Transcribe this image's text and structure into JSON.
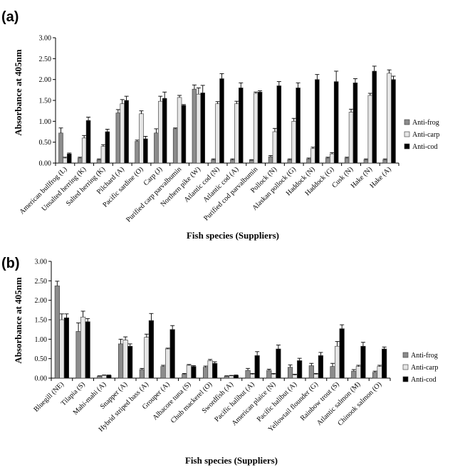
{
  "colors": {
    "frog": "#8c8c8c",
    "carp": "#e6e6e6",
    "cod": "#000000"
  },
  "chart_data": [
    {
      "type": "bar",
      "panel_label": "(a)",
      "xlabel": "Fish species (Suppliers)",
      "ylabel": "Absorbance at 405nm",
      "ylim": [
        0,
        3.0
      ],
      "yticks": [
        "0.00",
        "0.50",
        "1.00",
        "1.50",
        "2.00",
        "2.50",
        "3.00"
      ],
      "legend": "right",
      "categories": [
        "American bullfrog (L)",
        "Unsalted herring (K)",
        "Salted herring (K)",
        "Pilchard (A)",
        "Pacific sardine (O)",
        "Carp (J)",
        "Purified carp parvalbumin",
        "Northern pike (W)",
        "Atlantic cod (N)",
        "Atlantic cod (A)",
        "Purified cod parvalbumin",
        "Pollock (N)",
        "Alaskan pollock (G)",
        "Haddock (N)",
        "Haddock (G)",
        "Cusk (N)",
        "Hake (N)",
        "Hake (A)"
      ],
      "series": [
        {
          "name": "Anti-frog",
          "values": [
            0.72,
            0.12,
            0.08,
            1.2,
            0.52,
            0.72,
            0.82,
            1.77,
            0.08,
            0.08,
            0.07,
            0.15,
            0.08,
            0.1,
            0.12,
            0.12,
            0.08,
            0.08
          ],
          "errors": [
            0.12,
            0.02,
            0.02,
            0.08,
            0.03,
            0.1,
            0.02,
            0.1,
            0.02,
            0.02,
            0.01,
            0.03,
            0.02,
            0.02,
            0.02,
            0.02,
            0.02,
            0.02
          ]
        },
        {
          "name": "Anti-carp",
          "values": [
            0.12,
            0.6,
            0.4,
            1.42,
            1.18,
            1.48,
            1.57,
            1.65,
            1.42,
            1.42,
            1.67,
            0.75,
            1.0,
            0.35,
            0.22,
            1.22,
            1.62,
            2.15
          ],
          "errors": [
            0.02,
            0.06,
            0.04,
            0.1,
            0.07,
            0.12,
            0.05,
            0.15,
            0.05,
            0.06,
            0.03,
            0.08,
            0.07,
            0.03,
            0.03,
            0.07,
            0.05,
            0.08
          ]
        },
        {
          "name": "Anti-cod",
          "values": [
            0.22,
            1.02,
            0.75,
            1.5,
            0.58,
            1.55,
            1.38,
            1.68,
            2.02,
            1.8,
            1.7,
            1.85,
            1.8,
            2.0,
            1.95,
            1.92,
            2.2,
            2.0
          ],
          "errors": [
            0.02,
            0.08,
            0.06,
            0.1,
            0.06,
            0.15,
            0.02,
            0.18,
            0.12,
            0.12,
            0.03,
            0.1,
            0.12,
            0.12,
            0.25,
            0.1,
            0.12,
            0.08
          ]
        }
      ]
    },
    {
      "type": "bar",
      "panel_label": "(b)",
      "xlabel": "Fish species (Suppliers)",
      "ylabel": "Absorbance at 405nm",
      "ylim": [
        0,
        3.0
      ],
      "yticks": [
        "0.00",
        "0.50",
        "1.00",
        "1.50",
        "2.00",
        "2.50",
        "3.00"
      ],
      "legend": "right",
      "categories": [
        "Bluegill (NE)",
        "Tilapia (S)",
        "Mahi-mahi (A)",
        "Snapper (A)",
        "Hybrid striped bass (A)",
        "Grouper (A)",
        "Albacore tuna (S)",
        "Chub mackerel (O)",
        "Swordfish (A)",
        "Pacific halibut (A)",
        "American plaice (N)",
        "Pacific halibut (A)",
        "Yellowtail flounder (G)",
        "Rainbow trout (S)",
        "Atlantic salmon (M)",
        "Chinook salmon (O)"
      ],
      "series": [
        {
          "name": "Anti-frog",
          "values": [
            2.37,
            1.2,
            0.05,
            0.88,
            0.22,
            0.3,
            0.1,
            0.28,
            0.05,
            0.2,
            0.2,
            0.28,
            0.32,
            0.3,
            0.18,
            0.15
          ],
          "errors": [
            0.12,
            0.22,
            0.01,
            0.12,
            0.03,
            0.03,
            0.02,
            0.03,
            0.01,
            0.05,
            0.03,
            0.06,
            0.06,
            0.08,
            0.04,
            0.03
          ]
        },
        {
          "name": "Anti-carp",
          "values": [
            1.5,
            1.57,
            0.07,
            0.98,
            1.05,
            0.75,
            0.33,
            0.45,
            0.06,
            0.1,
            0.1,
            0.08,
            0.1,
            0.82,
            0.3,
            0.3
          ],
          "errors": [
            0.15,
            0.15,
            0.01,
            0.08,
            0.08,
            0.02,
            0.02,
            0.03,
            0.01,
            0.02,
            0.02,
            0.02,
            0.02,
            0.12,
            0.03,
            0.03
          ]
        },
        {
          "name": "Anti-cod",
          "values": [
            1.55,
            1.45,
            0.07,
            0.82,
            1.48,
            1.25,
            0.3,
            0.38,
            0.07,
            0.58,
            0.75,
            0.45,
            0.58,
            1.27,
            0.82,
            0.75
          ],
          "errors": [
            0.1,
            0.08,
            0.01,
            0.06,
            0.18,
            0.1,
            0.02,
            0.04,
            0.01,
            0.1,
            0.1,
            0.06,
            0.08,
            0.1,
            0.1,
            0.05
          ]
        }
      ]
    }
  ]
}
